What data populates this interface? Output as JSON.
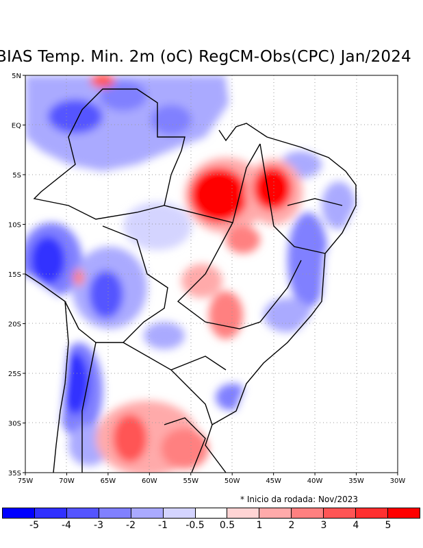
{
  "title": "BIAS Temp. Min. 2m (oC) RegCM-Obs(CPC) Jan/2024",
  "footnote": "* Inicio da rodada: Nov/2023",
  "axes": {
    "lat_labels": [
      "5N",
      "EQ",
      "5S",
      "10S",
      "15S",
      "20S",
      "25S",
      "30S",
      "35S"
    ],
    "lon_labels": [
      "75W",
      "70W",
      "65W",
      "60W",
      "55W",
      "50W",
      "45W",
      "40W",
      "35W",
      "30W"
    ]
  },
  "colorbar": {
    "labels": [
      "-5",
      "-4",
      "-3",
      "-2",
      "-1",
      "-0.5",
      "0.5",
      "1",
      "2",
      "3",
      "4",
      "5"
    ],
    "colors": [
      "#0000ff",
      "#3030ff",
      "#5555ff",
      "#8080ff",
      "#aaaaff",
      "#d4d4ff",
      "#ffffff",
      "#ffd4d4",
      "#ffaaaa",
      "#ff8080",
      "#ff5555",
      "#ff3030",
      "#ff0000"
    ]
  }
}
